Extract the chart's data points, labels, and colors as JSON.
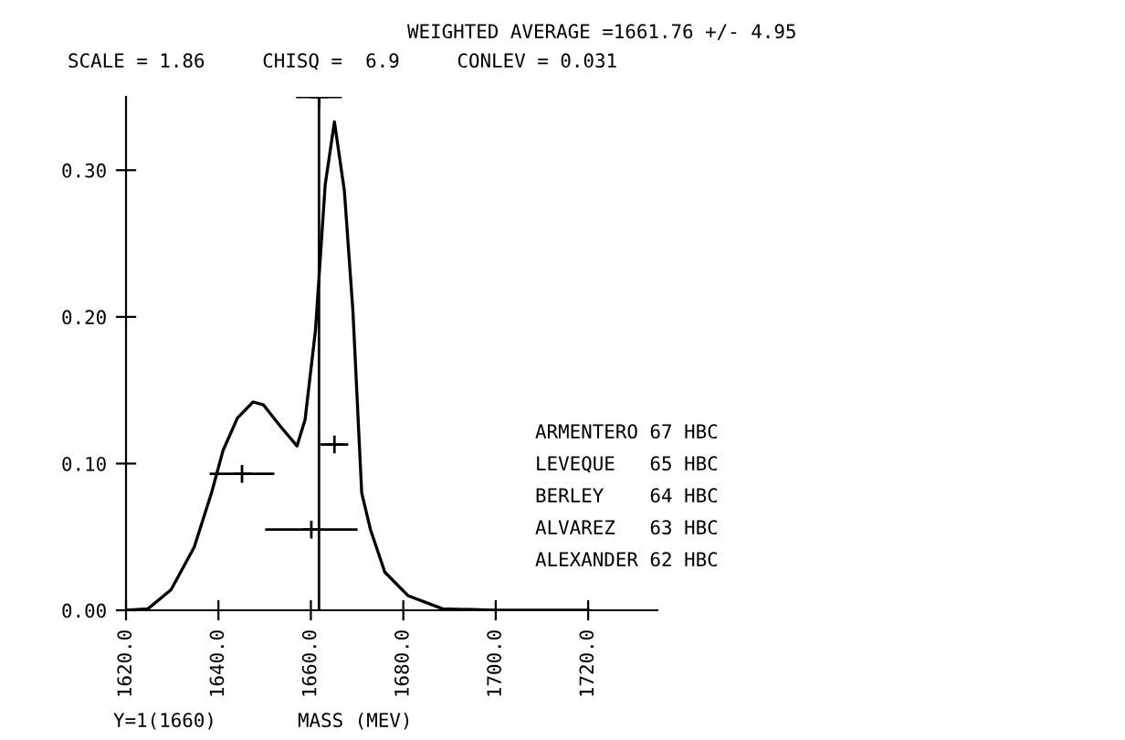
{
  "chart_data": {
    "type": "line",
    "title": "WEIGHTED AVERAGE =1661.76 +/- 4.95",
    "subtitle": "SCALE = 1.86     CHISQ =  6.9     CONLEV = 0.031",
    "xlabel": "MASS (MEV)",
    "annotations": [
      "ARMENTERO 67 HBC",
      "LEVEQUE   65 HBC",
      "BERLEY    64 HBC",
      "ALVAREZ   63 HBC",
      "ALEXANDER 62 HBC",
      "Y=1(1660)"
    ],
    "series": [
      {
        "color": "#000000",
        "x": [
          1620,
          1624.75,
          1629.75,
          1634.75,
          1638.5,
          1641,
          1644.1,
          1647.5,
          1649.75,
          1653.5,
          1657,
          1658.75,
          1661,
          1663.1,
          1665.1,
          1667.25,
          1669.1,
          1671,
          1672.9,
          1676,
          1681,
          1688.5,
          1700,
          1720
        ],
        "values": [
          0,
          0.001,
          0.014,
          0.043,
          0.08,
          0.109,
          0.131,
          0.142,
          0.14,
          0.125,
          0.112,
          0.13,
          0.191,
          0.29,
          0.333,
          0.286,
          0.204,
          0.08,
          0.055,
          0.026,
          0.01,
          0.001,
          0,
          0
        ]
      },
      {
        "type": "scatter",
        "color": "#000000",
        "marker": "cross",
        "x": [
          1665.1,
          1645.1,
          1660.1
        ],
        "values": [
          0.113,
          0.093,
          0.055
        ],
        "xerrors": [
          3,
          7,
          10
        ]
      },
      {
        "type": "scatter",
        "color": "#000000",
        "marker": "cross",
        "x": [
          1661.76
        ],
        "values": [
          0.35
        ],
        "xerrors": [
          4.95
        ]
      }
    ],
    "ref_lines": [
      {
        "axis": "x",
        "value": 1661.76,
        "color": "#000000"
      }
    ],
    "xlim": [
      1620,
      1735
    ],
    "ylim": [
      0,
      0.35
    ],
    "xticks": [
      {
        "value": 1620,
        "label": "1620.0"
      },
      {
        "value": 1640,
        "label": "1640.0"
      },
      {
        "value": 1660,
        "label": "1660.0"
      },
      {
        "value": 1680,
        "label": "1680.0"
      },
      {
        "value": 1700,
        "label": "1700.0"
      },
      {
        "value": 1720,
        "label": "1720.0"
      }
    ],
    "yticks": [
      {
        "value": 0,
        "label": "0.00"
      },
      {
        "value": 0.1,
        "label": "0.10"
      },
      {
        "value": 0.2,
        "label": "0.20"
      },
      {
        "value": 0.3,
        "label": "0.30"
      }
    ],
    "grid": false,
    "legend": false
  }
}
